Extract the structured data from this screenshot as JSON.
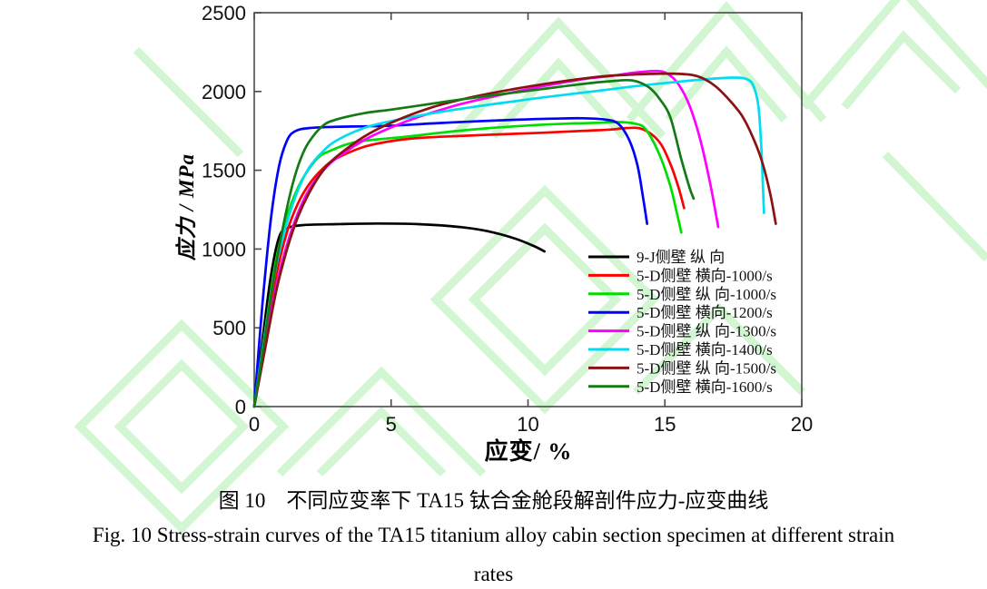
{
  "figure": {
    "caption_zh": "图 10　不同应变率下 TA15 钛合金舱段解剖件应力-应变曲线",
    "caption_en_line1": "Fig. 10 Stress-strain curves of the TA15 titanium alloy cabin section specimen at different strain",
    "caption_en_line2": "rates"
  },
  "chart_data": {
    "type": "line",
    "title": "",
    "xlabel": "应变/ %",
    "ylabel": "应力 / MPa",
    "xlim": [
      0,
      20
    ],
    "ylim": [
      0,
      2500
    ],
    "xticks": [
      0,
      5,
      10,
      15,
      20
    ],
    "yticks": [
      0,
      500,
      1000,
      1500,
      2000,
      2500
    ],
    "grid": false,
    "legend_position": "inside lower right",
    "frame_color": "#4a4a4a",
    "watermark_color": "#adefad",
    "x_units": "percent strain",
    "y_units": "MPa",
    "series": [
      {
        "name": "9-J侧壁 纵 向",
        "color": "#000000",
        "points": [
          [
            0,
            0
          ],
          [
            0.3,
            420
          ],
          [
            0.6,
            820
          ],
          [
            0.9,
            1070
          ],
          [
            1.2,
            1132
          ],
          [
            1.8,
            1152
          ],
          [
            3,
            1158
          ],
          [
            4.5,
            1162
          ],
          [
            6,
            1158
          ],
          [
            7.5,
            1140
          ],
          [
            8.5,
            1114
          ],
          [
            9.5,
            1068
          ],
          [
            10.2,
            1020
          ],
          [
            10.6,
            985
          ]
        ]
      },
      {
        "name": "5-D侧壁 横向-1000/s",
        "color": "#ff0000",
        "points": [
          [
            0,
            0
          ],
          [
            0.4,
            430
          ],
          [
            0.8,
            830
          ],
          [
            1.2,
            1110
          ],
          [
            1.6,
            1290
          ],
          [
            2,
            1410
          ],
          [
            2.5,
            1510
          ],
          [
            3,
            1575
          ],
          [
            4,
            1648
          ],
          [
            5,
            1685
          ],
          [
            6,
            1705
          ],
          [
            7.5,
            1718
          ],
          [
            9,
            1728
          ],
          [
            10.5,
            1738
          ],
          [
            12,
            1750
          ],
          [
            13,
            1758
          ],
          [
            13.6,
            1768
          ],
          [
            14.2,
            1760
          ],
          [
            14.8,
            1680
          ],
          [
            15.2,
            1540
          ],
          [
            15.5,
            1390
          ],
          [
            15.7,
            1260
          ]
        ]
      },
      {
        "name": "5-D侧壁 纵 向-1000/s",
        "color": "#00dd00",
        "points": [
          [
            0,
            0
          ],
          [
            0.4,
            480
          ],
          [
            0.8,
            930
          ],
          [
            1.2,
            1210
          ],
          [
            1.6,
            1390
          ],
          [
            2,
            1510
          ],
          [
            2.4,
            1590
          ],
          [
            2.8,
            1625
          ],
          [
            3.3,
            1660
          ],
          [
            3.8,
            1682
          ],
          [
            4.5,
            1696
          ],
          [
            5.5,
            1712
          ],
          [
            7,
            1742
          ],
          [
            8.5,
            1766
          ],
          [
            10,
            1784
          ],
          [
            11.5,
            1796
          ],
          [
            12.7,
            1802
          ],
          [
            13.3,
            1806
          ],
          [
            13.9,
            1796
          ],
          [
            14.3,
            1760
          ],
          [
            14.8,
            1600
          ],
          [
            15.2,
            1400
          ],
          [
            15.45,
            1220
          ],
          [
            15.6,
            1105
          ]
        ]
      },
      {
        "name": "5-D侧壁 横向-1200/s",
        "color": "#0000ff",
        "points": [
          [
            0,
            0
          ],
          [
            0.3,
            650
          ],
          [
            0.6,
            1180
          ],
          [
            0.9,
            1520
          ],
          [
            1.2,
            1690
          ],
          [
            1.5,
            1748
          ],
          [
            2,
            1768
          ],
          [
            3,
            1776
          ],
          [
            4,
            1779
          ],
          [
            5,
            1783
          ],
          [
            6.5,
            1797
          ],
          [
            8,
            1810
          ],
          [
            9.5,
            1820
          ],
          [
            11,
            1828
          ],
          [
            12,
            1830
          ],
          [
            12.8,
            1822
          ],
          [
            13.3,
            1795
          ],
          [
            13.7,
            1690
          ],
          [
            14,
            1530
          ],
          [
            14.2,
            1330
          ],
          [
            14.35,
            1160
          ]
        ]
      },
      {
        "name": "5-D侧壁 纵 向-1300/s",
        "color": "#ff00ff",
        "points": [
          [
            0,
            0
          ],
          [
            0.4,
            390
          ],
          [
            0.8,
            760
          ],
          [
            1.2,
            1030
          ],
          [
            1.6,
            1230
          ],
          [
            2,
            1375
          ],
          [
            2.5,
            1495
          ],
          [
            3,
            1575
          ],
          [
            4,
            1690
          ],
          [
            5,
            1772
          ],
          [
            6,
            1838
          ],
          [
            7.5,
            1918
          ],
          [
            9,
            1978
          ],
          [
            10.5,
            2032
          ],
          [
            12,
            2078
          ],
          [
            13,
            2098
          ],
          [
            13.9,
            2120
          ],
          [
            14.7,
            2130
          ],
          [
            15.1,
            2112
          ],
          [
            15.5,
            2045
          ],
          [
            15.9,
            1910
          ],
          [
            16.3,
            1690
          ],
          [
            16.65,
            1420
          ],
          [
            16.95,
            1140
          ]
        ]
      },
      {
        "name": "5-D侧壁 横向-1400/s",
        "color": "#00dcf0",
        "points": [
          [
            0,
            0
          ],
          [
            0.4,
            480
          ],
          [
            0.8,
            890
          ],
          [
            1.2,
            1170
          ],
          [
            1.6,
            1375
          ],
          [
            2,
            1515
          ],
          [
            2.5,
            1618
          ],
          [
            3,
            1688
          ],
          [
            4,
            1768
          ],
          [
            5,
            1812
          ],
          [
            6.5,
            1862
          ],
          [
            8,
            1902
          ],
          [
            9.5,
            1938
          ],
          [
            11,
            1972
          ],
          [
            12.5,
            2003
          ],
          [
            14,
            2035
          ],
          [
            15.5,
            2062
          ],
          [
            16.5,
            2078
          ],
          [
            17.5,
            2088
          ],
          [
            18,
            2078
          ],
          [
            18.25,
            2030
          ],
          [
            18.42,
            1900
          ],
          [
            18.52,
            1650
          ],
          [
            18.58,
            1400
          ],
          [
            18.62,
            1230
          ]
        ]
      },
      {
        "name": "5-D侧壁 纵 向-1500/s",
        "color": "#8b1212",
        "points": [
          [
            0,
            0
          ],
          [
            0.4,
            370
          ],
          [
            0.8,
            730
          ],
          [
            1.2,
            1000
          ],
          [
            1.6,
            1205
          ],
          [
            2,
            1355
          ],
          [
            2.5,
            1495
          ],
          [
            3,
            1585
          ],
          [
            4,
            1712
          ],
          [
            5,
            1802
          ],
          [
            6.5,
            1900
          ],
          [
            8,
            1966
          ],
          [
            9.5,
            2016
          ],
          [
            11,
            2058
          ],
          [
            12.5,
            2092
          ],
          [
            13.5,
            2105
          ],
          [
            14.5,
            2112
          ],
          [
            15.5,
            2112
          ],
          [
            16.2,
            2096
          ],
          [
            16.8,
            2040
          ],
          [
            17.3,
            1956
          ],
          [
            17.8,
            1850
          ],
          [
            18.2,
            1715
          ],
          [
            18.55,
            1555
          ],
          [
            18.85,
            1350
          ],
          [
            19.05,
            1160
          ]
        ]
      },
      {
        "name": "5-D侧壁 横向-1600/s",
        "color": "#157a15",
        "points": [
          [
            0,
            0
          ],
          [
            0.35,
            400
          ],
          [
            0.7,
            800
          ],
          [
            1.05,
            1140
          ],
          [
            1.4,
            1410
          ],
          [
            1.7,
            1575
          ],
          [
            2,
            1680
          ],
          [
            2.5,
            1782
          ],
          [
            3,
            1822
          ],
          [
            4,
            1862
          ],
          [
            5,
            1885
          ],
          [
            6,
            1910
          ],
          [
            7.5,
            1948
          ],
          [
            9,
            1982
          ],
          [
            10.5,
            2015
          ],
          [
            12,
            2048
          ],
          [
            13,
            2065
          ],
          [
            13.8,
            2070
          ],
          [
            14.4,
            2028
          ],
          [
            14.8,
            1955
          ],
          [
            15.2,
            1835
          ],
          [
            15.6,
            1570
          ],
          [
            15.9,
            1390
          ],
          [
            16.05,
            1320
          ]
        ]
      }
    ]
  }
}
